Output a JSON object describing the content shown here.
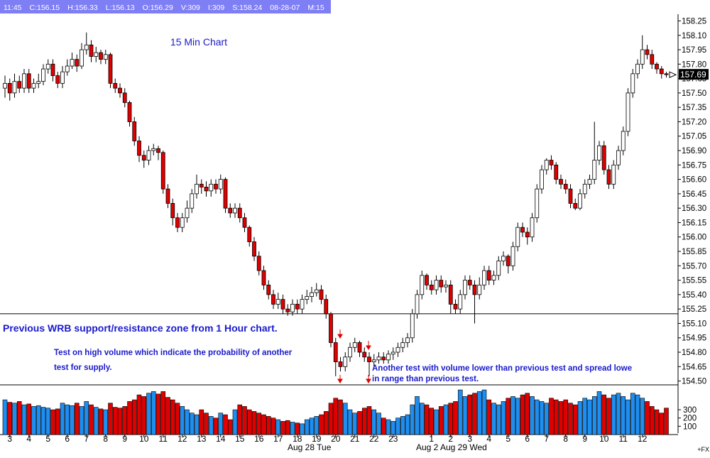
{
  "chart_data": {
    "type": "candlestick",
    "title": "15 Min Chart",
    "info_bar": [
      "11:45",
      "C:156.15",
      "H:156.33",
      "L:156.13",
      "O:156.29",
      "V:309",
      "I:309",
      "S:158.24",
      "08-28-07",
      "M:15"
    ],
    "annotations": [
      "Previous WRB support/resistance zone from 1 Hour chart.",
      "Test on high volume which indicate the probability of another",
      "test for supply.",
      "Another test with volume lower than previous test and spread lowe",
      "in range than previous test."
    ],
    "support_line": 155.2,
    "last_price": 157.69,
    "corner_label": "+FX",
    "date_labels": [
      "Aug 28 Tue",
      "Aug 2",
      "Aug 29 Wed"
    ],
    "up_color": "#ffffff",
    "down_color": "#e00000",
    "volume_up_color": "#1e8ef0",
    "volume_down_color": "#e00000",
    "ylim": [
      154.46,
      158.32
    ],
    "yticks": [
      {
        "value": 154.5,
        "label": "154.50"
      },
      154.65,
      {
        "value": 154.8,
        "label": "154.80"
      },
      154.95,
      {
        "value": 155.1,
        "label": "155.10"
      },
      155.25,
      {
        "value": 155.4,
        "label": "155.40"
      },
      155.55,
      {
        "value": 155.7,
        "label": "155.70"
      },
      155.85,
      {
        "value": 156.0,
        "label": "156.00"
      },
      156.15,
      {
        "value": 156.3,
        "label": "156.30"
      },
      156.45,
      {
        "value": 156.6,
        "label": "156.60"
      },
      156.75,
      {
        "value": 156.9,
        "label": "156.90"
      },
      157.05,
      {
        "value": 157.2,
        "label": "157.20"
      },
      157.35,
      {
        "value": 157.5,
        "label": "157.50"
      },
      157.65,
      {
        "value": 157.8,
        "label": "157.80"
      },
      157.95,
      {
        "value": 158.1,
        "label": "158.10"
      },
      158.25
    ],
    "vlim": [
      0,
      575
    ],
    "vticks": [
      300,
      200,
      100
    ],
    "categories": [
      null,
      "3",
      null,
      null,
      null,
      "4",
      null,
      null,
      null,
      "5",
      null,
      null,
      null,
      "6",
      null,
      null,
      null,
      "7",
      null,
      null,
      null,
      "8",
      null,
      null,
      null,
      "9",
      null,
      null,
      null,
      "10",
      null,
      null,
      null,
      "11",
      null,
      null,
      null,
      "12",
      null,
      null,
      null,
      "13",
      null,
      null,
      null,
      "14",
      null,
      null,
      null,
      "15",
      null,
      null,
      null,
      "16",
      null,
      null,
      null,
      "17",
      null,
      null,
      null,
      "18",
      null,
      null,
      null,
      "19",
      null,
      null,
      null,
      "20",
      null,
      null,
      null,
      "21",
      null,
      null,
      null,
      "22",
      null,
      null,
      null,
      "23",
      null,
      null,
      null,
      null,
      null,
      null,
      null,
      "1",
      null,
      null,
      null,
      "2",
      null,
      null,
      null,
      "3",
      null,
      null,
      null,
      "4",
      null,
      null,
      null,
      "5",
      null,
      null,
      null,
      "6",
      null,
      null,
      null,
      "7",
      null,
      null,
      null,
      "8",
      null,
      null,
      null,
      "9",
      null,
      null,
      null,
      "10",
      null,
      null,
      null,
      "11",
      null,
      null,
      null,
      "12",
      null,
      null,
      null,
      null,
      null
    ],
    "open": [
      157.55,
      157.6,
      157.5,
      157.62,
      157.55,
      157.7,
      157.55,
      157.6,
      157.62,
      157.75,
      157.8,
      157.68,
      157.6,
      157.72,
      157.78,
      157.85,
      157.78,
      157.95,
      158.0,
      157.88,
      157.92,
      157.85,
      157.9,
      157.6,
      157.55,
      157.5,
      157.4,
      157.2,
      157.0,
      156.85,
      156.8,
      156.9,
      156.92,
      156.88,
      156.5,
      156.35,
      156.2,
      156.1,
      156.2,
      156.3,
      156.45,
      156.55,
      156.52,
      156.48,
      156.55,
      156.5,
      156.6,
      156.3,
      156.25,
      156.3,
      156.2,
      156.1,
      155.95,
      155.8,
      155.65,
      155.5,
      155.4,
      155.3,
      155.35,
      155.25,
      155.22,
      155.3,
      155.25,
      155.35,
      155.38,
      155.42,
      155.45,
      155.35,
      155.2,
      154.9,
      154.7,
      154.65,
      154.75,
      154.85,
      154.9,
      154.8,
      154.75,
      154.7,
      154.72,
      154.75,
      154.72,
      154.78,
      154.8,
      154.85,
      154.9,
      154.95,
      155.2,
      155.4,
      155.6,
      155.5,
      155.45,
      155.55,
      155.48,
      155.5,
      155.3,
      155.25,
      155.4,
      155.55,
      155.5,
      155.4,
      155.5,
      155.65,
      155.55,
      155.6,
      155.75,
      155.8,
      155.7,
      155.9,
      156.1,
      156.05,
      156.0,
      156.2,
      156.5,
      156.7,
      156.8,
      156.75,
      156.6,
      156.55,
      156.5,
      156.35,
      156.3,
      156.45,
      156.55,
      156.6,
      156.8,
      156.95,
      156.7,
      156.55,
      156.75,
      156.9,
      157.1,
      157.5,
      157.7,
      157.8,
      157.95,
      157.9,
      157.8,
      157.75,
      157.7
    ],
    "high": [
      157.68,
      157.65,
      157.7,
      157.68,
      157.75,
      157.75,
      157.65,
      157.7,
      157.8,
      157.85,
      157.85,
      157.72,
      157.78,
      157.85,
      157.92,
      157.9,
      158.02,
      158.13,
      158.05,
      157.98,
      157.95,
      157.95,
      157.92,
      157.65,
      157.6,
      157.55,
      157.42,
      157.25,
      157.05,
      156.9,
      156.95,
      156.97,
      156.95,
      156.9,
      156.55,
      156.4,
      156.25,
      156.25,
      156.38,
      156.5,
      156.65,
      156.6,
      156.58,
      156.6,
      156.6,
      156.65,
      156.62,
      156.35,
      156.35,
      156.35,
      156.25,
      156.12,
      156.0,
      155.85,
      155.7,
      155.55,
      155.45,
      155.42,
      155.4,
      155.3,
      155.35,
      155.35,
      155.4,
      155.45,
      155.48,
      155.52,
      155.5,
      155.4,
      155.22,
      154.95,
      154.75,
      154.8,
      154.9,
      154.95,
      154.92,
      154.85,
      154.8,
      154.78,
      154.8,
      154.8,
      154.82,
      154.85,
      154.9,
      154.95,
      155.0,
      155.25,
      155.45,
      155.65,
      155.62,
      155.55,
      155.6,
      155.6,
      155.55,
      155.55,
      155.35,
      155.45,
      155.6,
      155.6,
      155.55,
      155.58,
      155.7,
      155.7,
      155.65,
      155.8,
      155.85,
      155.82,
      155.95,
      156.15,
      156.15,
      156.1,
      156.25,
      156.55,
      156.75,
      156.82,
      156.85,
      156.78,
      156.65,
      156.6,
      156.55,
      156.4,
      156.5,
      156.6,
      156.65,
      157.2,
      157.0,
      157.0,
      156.75,
      156.8,
      156.95,
      157.15,
      157.55,
      157.75,
      157.85,
      158.1,
      158.0,
      157.95,
      157.82,
      157.78,
      157.72
    ],
    "low": [
      157.45,
      157.42,
      157.45,
      157.5,
      157.5,
      157.5,
      157.5,
      157.55,
      157.58,
      157.7,
      157.62,
      157.55,
      157.55,
      157.68,
      157.75,
      157.72,
      157.75,
      157.9,
      157.82,
      157.82,
      157.8,
      157.8,
      157.55,
      157.5,
      157.45,
      157.35,
      157.15,
      156.95,
      156.78,
      156.72,
      156.75,
      156.85,
      156.8,
      156.45,
      156.3,
      156.12,
      156.05,
      156.05,
      156.15,
      156.25,
      156.4,
      156.45,
      156.42,
      156.42,
      156.45,
      156.45,
      156.25,
      156.2,
      156.2,
      156.15,
      156.05,
      155.9,
      155.75,
      155.6,
      155.45,
      155.35,
      155.25,
      155.25,
      155.2,
      155.18,
      155.18,
      155.2,
      155.2,
      155.3,
      155.32,
      155.38,
      155.3,
      155.15,
      154.85,
      154.55,
      154.6,
      154.6,
      154.7,
      154.8,
      154.75,
      154.7,
      154.55,
      154.65,
      154.68,
      154.68,
      154.68,
      154.72,
      154.75,
      154.8,
      154.85,
      154.9,
      155.15,
      155.35,
      155.45,
      155.4,
      155.4,
      155.42,
      155.42,
      155.2,
      155.2,
      155.2,
      155.35,
      155.45,
      155.1,
      155.35,
      155.45,
      155.5,
      155.5,
      155.55,
      155.7,
      155.62,
      155.65,
      155.85,
      156.0,
      155.92,
      155.95,
      156.15,
      156.45,
      156.65,
      156.7,
      156.55,
      156.5,
      156.45,
      156.3,
      156.28,
      156.28,
      156.4,
      156.5,
      156.55,
      156.75,
      156.65,
      156.5,
      156.5,
      156.7,
      156.85,
      157.05,
      157.45,
      157.65,
      157.75,
      157.85,
      157.75,
      157.7,
      157.65,
      157.66
    ],
    "close": [
      157.6,
      157.5,
      157.62,
      157.55,
      157.7,
      157.55,
      157.6,
      157.62,
      157.75,
      157.8,
      157.68,
      157.6,
      157.72,
      157.78,
      157.85,
      157.78,
      157.95,
      158.0,
      157.88,
      157.92,
      157.85,
      157.9,
      157.6,
      157.55,
      157.5,
      157.4,
      157.2,
      157.0,
      156.85,
      156.8,
      156.9,
      156.92,
      156.88,
      156.5,
      156.35,
      156.2,
      156.1,
      156.2,
      156.3,
      156.45,
      156.55,
      156.52,
      156.48,
      156.55,
      156.5,
      156.6,
      156.3,
      156.25,
      156.3,
      156.2,
      156.1,
      155.95,
      155.8,
      155.65,
      155.5,
      155.4,
      155.3,
      155.35,
      155.25,
      155.22,
      155.3,
      155.25,
      155.35,
      155.38,
      155.42,
      155.45,
      155.35,
      155.2,
      154.9,
      154.7,
      154.65,
      154.75,
      154.85,
      154.9,
      154.8,
      154.75,
      154.7,
      154.72,
      154.75,
      154.72,
      154.78,
      154.8,
      154.85,
      154.9,
      154.95,
      155.2,
      155.4,
      155.6,
      155.5,
      155.45,
      155.55,
      155.48,
      155.5,
      155.3,
      155.25,
      155.4,
      155.55,
      155.5,
      155.4,
      155.5,
      155.65,
      155.55,
      155.6,
      155.75,
      155.8,
      155.7,
      155.9,
      156.1,
      156.05,
      156.0,
      156.2,
      156.5,
      156.7,
      156.8,
      156.75,
      156.6,
      156.55,
      156.5,
      156.35,
      156.3,
      156.45,
      156.55,
      156.6,
      156.8,
      156.95,
      156.7,
      156.55,
      156.75,
      156.9,
      157.1,
      157.5,
      157.7,
      157.8,
      157.95,
      157.9,
      157.8,
      157.75,
      157.7,
      157.69
    ],
    "volume": [
      420,
      390,
      380,
      400,
      360,
      370,
      340,
      350,
      330,
      320,
      300,
      310,
      380,
      360,
      350,
      380,
      340,
      400,
      360,
      330,
      310,
      300,
      380,
      330,
      320,
      340,
      400,
      420,
      480,
      460,
      500,
      520,
      490,
      520,
      450,
      420,
      380,
      340,
      300,
      260,
      240,
      300,
      260,
      220,
      200,
      260,
      240,
      180,
      300,
      360,
      340,
      300,
      280,
      260,
      240,
      220,
      200,
      180,
      160,
      170,
      150,
      140,
      130,
      180,
      200,
      220,
      240,
      280,
      380,
      440,
      420,
      380,
      300,
      260,
      280,
      320,
      340,
      300,
      260,
      200,
      180,
      160,
      200,
      220,
      240,
      360,
      460,
      380,
      360,
      320,
      300,
      340,
      360,
      380,
      400,
      540,
      460,
      480,
      500,
      520,
      540,
      420,
      380,
      360,
      400,
      440,
      460,
      440,
      480,
      500,
      460,
      420,
      400,
      380,
      440,
      420,
      400,
      420,
      380,
      360,
      400,
      440,
      420,
      460,
      520,
      480,
      440,
      480,
      500,
      460,
      420,
      500,
      480,
      440,
      400,
      340,
      300,
      260,
      320
    ]
  }
}
